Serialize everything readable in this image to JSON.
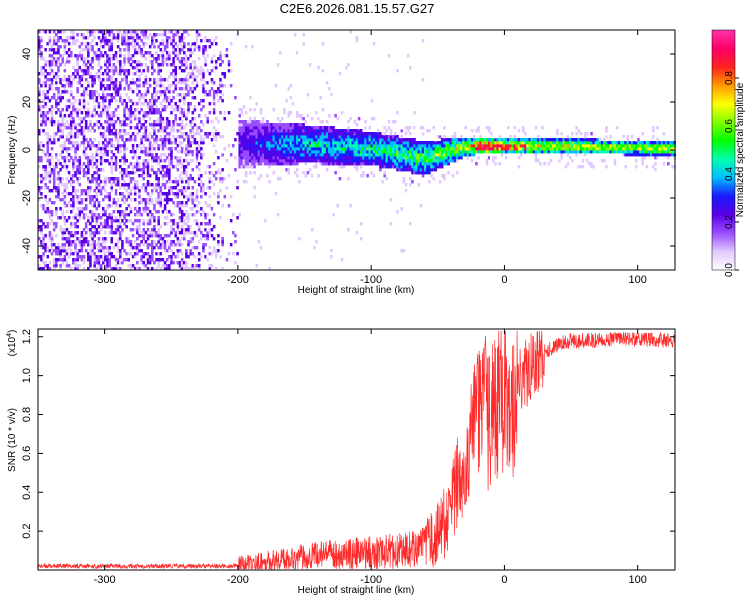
{
  "title": "C2E6.2026.081.15.57.G27",
  "chart_data": [
    {
      "type": "heatmap",
      "xlabel": "Height of straight line (km)",
      "ylabel": "Frequency (Hz)",
      "xlim": [
        -350,
        128
      ],
      "ylim": [
        -50,
        50
      ],
      "xticks": [
        -300,
        -200,
        -100,
        0,
        100
      ],
      "yticks": [
        -40,
        -20,
        0,
        20,
        40
      ],
      "colorbar": {
        "label": "Normalized spectral amplitude",
        "range": [
          0,
          1
        ],
        "ticks": [
          "0.0",
          "0.2",
          "0.4",
          "0.6",
          "0.8"
        ],
        "colors": [
          "#ffffff",
          "#e0c8ff",
          "#9a4dff",
          "#5a00e6",
          "#1a1aff",
          "#00bfff",
          "#00ffb0",
          "#00ff00",
          "#80ff00",
          "#ffff00",
          "#ff9900",
          "#ff2020",
          "#ff0066",
          "#ff33aa"
        ]
      },
      "description_points": [
        {
          "x": -300,
          "freq_center": 0,
          "spread": 50,
          "amplitude": 0.15
        },
        {
          "x": -200,
          "freq_center": 2,
          "spread": 10,
          "amplitude": 0.25
        },
        {
          "x": -150,
          "freq_center": 2,
          "spread": 8,
          "amplitude": 0.4
        },
        {
          "x": -100,
          "freq_center": 0,
          "spread": 7,
          "amplitude": 0.45
        },
        {
          "x": -60,
          "freq_center": -4,
          "spread": 7,
          "amplitude": 0.5
        },
        {
          "x": -30,
          "freq_center": 1,
          "spread": 4,
          "amplitude": 0.6
        },
        {
          "x": -15,
          "freq_center": 1,
          "spread": 3,
          "amplitude": 0.9
        },
        {
          "x": 0,
          "freq_center": 1,
          "spread": 3,
          "amplitude": 0.7
        },
        {
          "x": 50,
          "freq_center": 1,
          "spread": 3,
          "amplitude": 0.6
        },
        {
          "x": 128,
          "freq_center": 0,
          "spread": 3,
          "amplitude": 0.55
        }
      ]
    },
    {
      "type": "line",
      "xlabel": "Height of straight line (km)",
      "ylabel": "SNR (10 * v/v)",
      "yscale_label": "(x10",
      "yscale_exp": "4",
      "yscale_close": ")",
      "xlim": [
        -350,
        128
      ],
      "ylim": [
        0,
        1.24
      ],
      "xticks": [
        -300,
        -200,
        -100,
        0,
        100
      ],
      "yticks": [
        "0.2",
        "0.4",
        "0.6",
        "0.8",
        "1.0",
        "1.2"
      ],
      "series": [
        {
          "name": "SNR",
          "color": "#ff2a2a",
          "x": [
            -350,
            -300,
            -250,
            -200,
            -180,
            -160,
            -140,
            -120,
            -100,
            -80,
            -60,
            -50,
            -40,
            -35,
            -30,
            -25,
            -20,
            -15,
            -12,
            -10,
            -5,
            0,
            5,
            10,
            15,
            20,
            30,
            40,
            50,
            60,
            80,
            100,
            128
          ],
          "y": [
            0.02,
            0.02,
            0.02,
            0.02,
            0.04,
            0.06,
            0.08,
            0.08,
            0.09,
            0.1,
            0.12,
            0.18,
            0.3,
            0.45,
            0.55,
            0.7,
            0.8,
            0.9,
            0.75,
            0.8,
            0.85,
            0.88,
            0.9,
            0.95,
            1.0,
            1.05,
            1.12,
            1.16,
            1.18,
            1.18,
            1.19,
            1.19,
            1.18
          ]
        }
      ]
    }
  ]
}
